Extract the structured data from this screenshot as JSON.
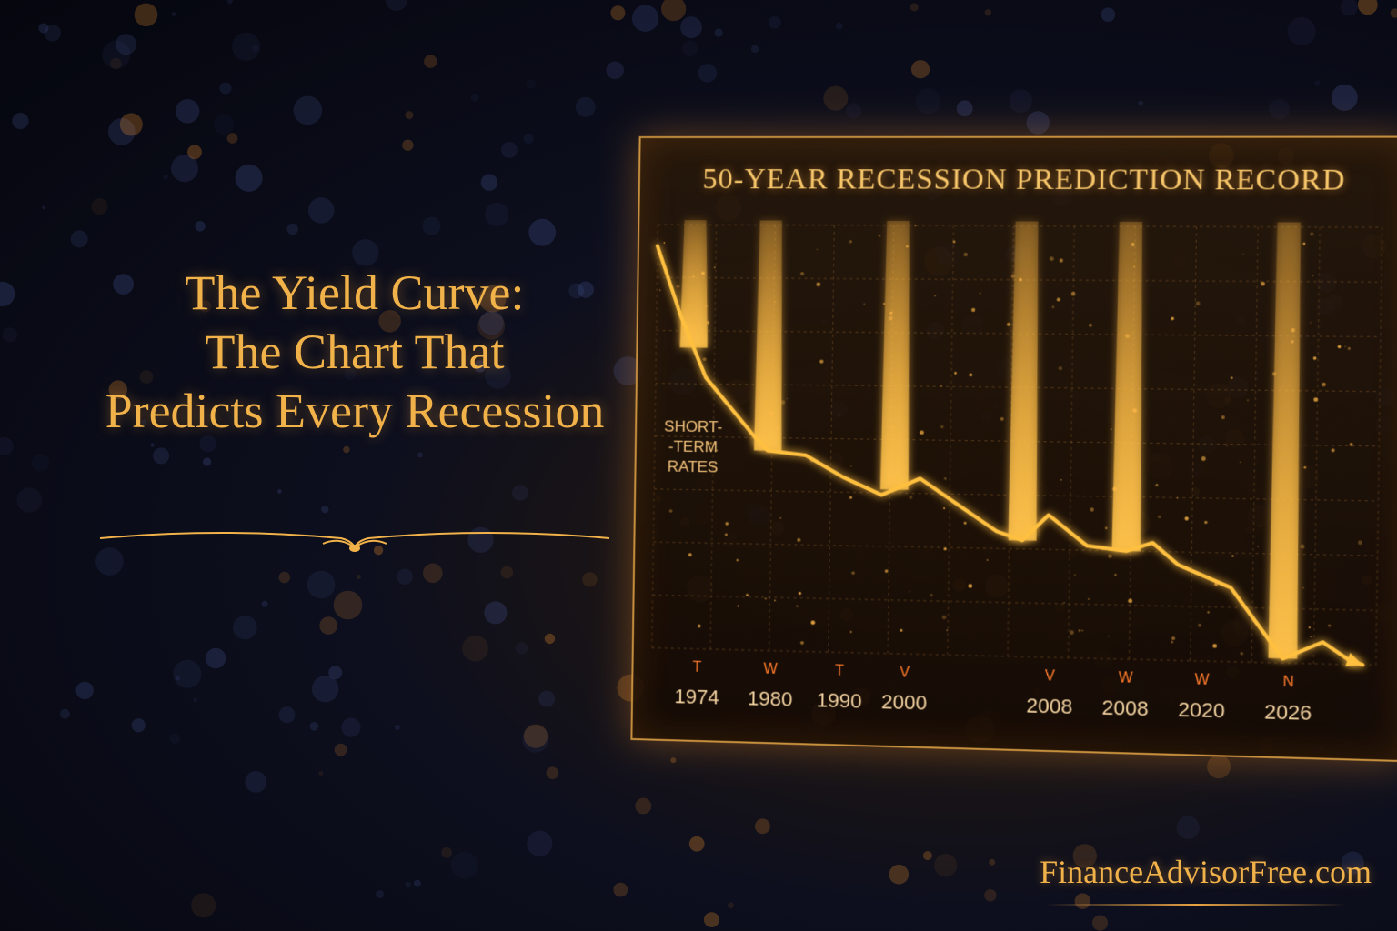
{
  "headline": {
    "line1": "The Yield Curve:",
    "line2": "The Chart That",
    "line3": "Predicts Every Recession"
  },
  "site": "FinanceAdvisorFree.com",
  "colors": {
    "gold": "#f2b24a",
    "glow": "#ffb030",
    "background": "#0d0f1e"
  },
  "chart_data": {
    "type": "line",
    "title": "50-YEAR RECESSION PREDICTION RECORD",
    "series": [
      {
        "name": "SHORT-\n-TERM\nRATES",
        "points": [
          [
            1971,
            95
          ],
          [
            1973,
            78
          ],
          [
            1975,
            64
          ],
          [
            1977,
            57
          ],
          [
            1979,
            50
          ],
          [
            1980,
            47
          ],
          [
            1983,
            46
          ],
          [
            1986,
            41
          ],
          [
            1989,
            37
          ],
          [
            1992,
            41
          ],
          [
            1995,
            35
          ],
          [
            1998,
            29
          ],
          [
            2000,
            27
          ],
          [
            2002,
            33
          ],
          [
            2005,
            26
          ],
          [
            2008,
            25
          ],
          [
            2010,
            27
          ],
          [
            2012,
            22
          ],
          [
            2016,
            17
          ],
          [
            2019,
            5
          ],
          [
            2020,
            1
          ],
          [
            2023,
            5
          ],
          [
            2025,
            1
          ],
          [
            2026,
            0
          ]
        ]
      }
    ],
    "recession_spikes": [
      1974,
      1980,
      1990,
      2000,
      2008,
      2020
    ],
    "tick_marks": [
      "T",
      "W",
      "T",
      "V",
      "V",
      "W",
      "W",
      "N"
    ],
    "tick_labels": [
      "1974",
      "1980",
      "1990",
      "2000",
      "2008",
      "2008",
      "2020",
      "2026"
    ],
    "xlim": [
      1971,
      2027
    ],
    "ylim": [
      0,
      100
    ],
    "grid": true,
    "legend": "none"
  }
}
